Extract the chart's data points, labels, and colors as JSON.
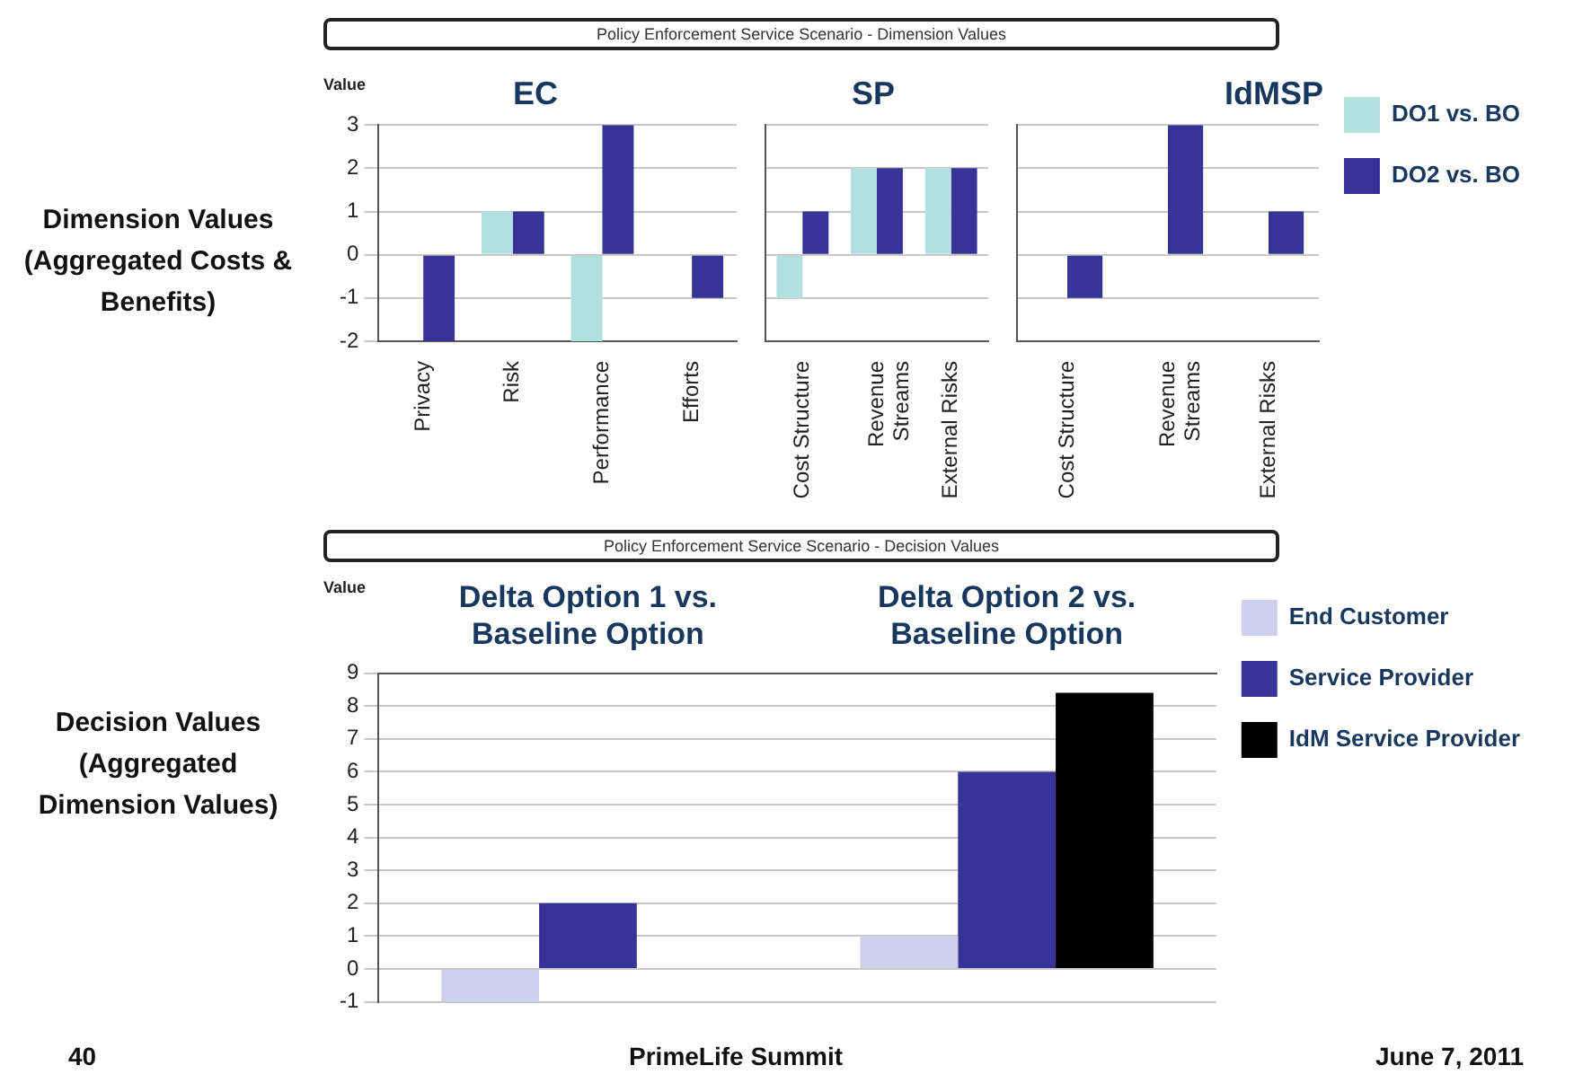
{
  "chart_data": [
    {
      "type": "bar",
      "title": "Policy Enforcement Service Scenario - Dimension Values",
      "subtitle": "EC",
      "ylabel": "Dimension Values (Aggregated Costs & Benefits)",
      "annotations": [
        "Value"
      ],
      "categories": [
        "Privacy",
        "Risk",
        "Performance",
        "Efforts"
      ],
      "series": [
        {
          "color": "#b4dfe0",
          "values": [
            0,
            1,
            -2,
            0
          ]
        },
        {
          "color": "#373397",
          "values": [
            -2,
            1,
            3,
            -1
          ]
        }
      ],
      "ylim": [
        -2,
        3
      ],
      "yticks": [
        -2,
        -1,
        0,
        1,
        2,
        3
      ],
      "grid": "y"
    },
    {
      "type": "bar",
      "subtitle": "SP",
      "categories": [
        "Cost Structure",
        "Revenue Streams",
        "External Risks"
      ],
      "series": [
        {
          "color": "#b4dfe0",
          "values": [
            -1,
            2,
            2
          ]
        },
        {
          "color": "#373397",
          "values": [
            1,
            2,
            2
          ]
        }
      ],
      "ylim": [
        -2,
        3
      ],
      "yticks": [
        -2,
        -1,
        0,
        1,
        2,
        3
      ],
      "grid": "y",
      "tick_labels": "x"
    },
    {
      "type": "bar",
      "subtitle": "IdMSP",
      "categories": [
        "Cost Structure",
        "Revenue Streams",
        "External Risks"
      ],
      "series": [
        {
          "name": "DO1 vs. BO",
          "color": "#b4dfe0",
          "values": [
            0,
            0,
            0
          ]
        },
        {
          "name": "DO2 vs. BO",
          "color": "#373397",
          "values": [
            -1,
            3,
            1
          ]
        }
      ],
      "ylim": [
        -2,
        3
      ],
      "yticks": [
        -2,
        -1,
        0,
        1,
        2,
        3
      ],
      "grid": "y",
      "tick_labels": "x",
      "legend": "right"
    },
    {
      "type": "bar",
      "title": "Policy Enforcement Service Scenario - Decision Values",
      "ylabel": "Decision Values (Aggregated Dimension Values)",
      "annotations": [
        "Value",
        "40",
        "PrimeLife Summit",
        "June 7, 2011"
      ],
      "categories": [
        "Delta Option 1 vs. Baseline Option",
        "Delta Option 2 vs. Baseline Option"
      ],
      "series": [
        {
          "name": "End Customer",
          "color": "#d0d0ee",
          "values": [
            -1,
            1
          ]
        },
        {
          "name": "Service Provider",
          "color": "#373397",
          "values": [
            2,
            6
          ]
        },
        {
          "name": "IdM Service Provider",
          "color": "#000000",
          "values": [
            null,
            8.4
          ]
        }
      ],
      "ylim": [
        -1,
        9
      ],
      "yticks": [
        -1,
        0,
        1,
        2,
        3,
        4,
        5,
        6,
        7,
        8,
        9
      ],
      "grid": "y",
      "legend": "right"
    }
  ]
}
